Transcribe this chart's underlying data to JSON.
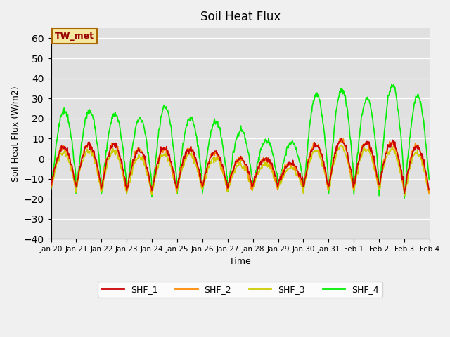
{
  "title": "Soil Heat Flux",
  "ylabel": "Soil Heat Flux (W/m2)",
  "xlabel": "Time",
  "ylim": [
    -40,
    65
  ],
  "yticks": [
    -40,
    -30,
    -20,
    -10,
    0,
    10,
    20,
    30,
    40,
    50,
    60
  ],
  "colors": {
    "SHF_1": "#cc0000",
    "SHF_2": "#ff8800",
    "SHF_3": "#cccc00",
    "SHF_4": "#00ee00"
  },
  "bg_color": "#e0e0e0",
  "fig_bg_color": "#f0f0f0",
  "annotation_text": "TW_met",
  "annotation_bg": "#f5e6a0",
  "annotation_border": "#aa6600",
  "annotation_textcolor": "#990000",
  "xtick_labels": [
    "Jan 20",
    "Jan 21",
    "Jan 22",
    "Jan 23",
    "Jan 24",
    "Jan 25",
    "Jan 26",
    "Jan 27",
    "Jan 28",
    "Jan 29",
    "Jan 30",
    "Jan 31",
    "Feb 1",
    "Feb 2",
    "Feb 3",
    "Feb 4"
  ],
  "n_per_day": 48,
  "n_days": 15,
  "amplitudes_day": [
    20,
    21,
    22,
    20,
    21,
    19,
    17,
    14,
    13,
    11,
    21,
    23,
    22,
    22,
    23
  ],
  "amplitudes_SHF4_extra": [
    1.9,
    1.8,
    1.7,
    1.8,
    2.0,
    1.8,
    1.9,
    2.0,
    1.7,
    1.9,
    2.2,
    2.1,
    2.0,
    2.3,
    2.1
  ],
  "baseline_day": [
    -14,
    -14,
    -15,
    -16,
    -16,
    -14,
    -14,
    -14,
    -13,
    -13,
    -14,
    -14,
    -14,
    -14,
    -17
  ],
  "linewidth": 1.2
}
